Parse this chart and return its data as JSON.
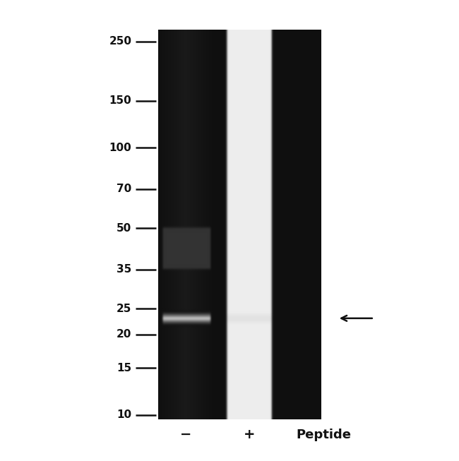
{
  "background_color": "#ffffff",
  "fig_width": 6.5,
  "fig_height": 6.53,
  "dpi": 100,
  "mw_values": [
    250,
    150,
    100,
    70,
    50,
    35,
    25,
    20,
    15,
    10
  ],
  "mw_labels": [
    "250",
    "150",
    "100",
    "70",
    "50",
    "35",
    "25",
    "20",
    "15",
    "10"
  ],
  "lane_labels": [
    "−",
    "+",
    "Peptide"
  ],
  "band_mw": 23,
  "arrow_mw": 23
}
